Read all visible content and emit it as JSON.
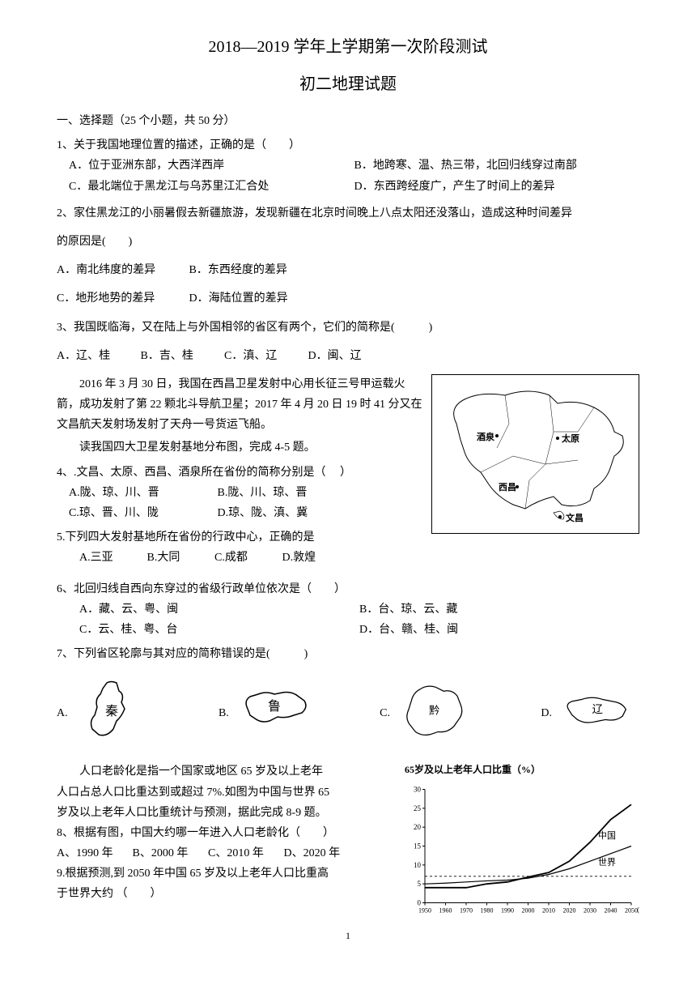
{
  "title": "2018—2019 学年上学期第一次阶段测试",
  "subtitle": "初二地理试题",
  "section1": "一、选择题（25 个小题，共 50 分）",
  "q1": {
    "text": "1、关于我国地理位置的描述，正确的是（　　）",
    "a": "A．位于亚洲东部，大西洋西岸",
    "b": "B．地跨寒、温、热三带，北回归线穿过南部",
    "c": "C．最北端位于黑龙江与乌苏里江汇合处",
    "d": "D．东西跨经度广，产生了时间上的差异"
  },
  "q2": {
    "text": "2、家住黑龙江的小丽暑假去新疆旅游，发现新疆在北京时间晚上八点太阳还没落山，造成这种时间差异",
    "text2": "的原因是(　　)",
    "a": "A．南北纬度的差异",
    "b": "B．东西经度的差异",
    "c": "C．地形地势的差异",
    "d": "D．海陆位置的差异"
  },
  "q3": {
    "text": "3、我国既临海，又在陆上与外国相邻的省区有两个，它们的简称是(　　　)",
    "a": "A．辽、桂",
    "b": "B．吉、桂",
    "c": "C．滇、辽",
    "d": "D．闽、辽"
  },
  "context1": "2016 年 3 月 30 日，我国在西昌卫星发射中心用长征三号甲运载火箭，成功发射了第 22 颗北斗导航卫星；2017 年 4 月 20 日 19 时 41 分又在文昌航天发射场发射了天舟一号货运飞船。",
  "context1b": "读我国四大卫星发射基地分布图，完成 4-5 题。",
  "q4": {
    "text": "4、.文昌、太原、西昌、酒泉所在省份的简称分别是（　 ）",
    "a": "A.陇、琼、川、晋",
    "b": "B.陇、川、琼、晋",
    "c": "C.琼、晋、川、陇",
    "d": "D.琼、陇、滇、冀"
  },
  "q5": {
    "text": "5.下列四大发射基地所在省份的行政中心，正确的是",
    "a": "A.三亚",
    "b": "B.大同",
    "c": "C.成都",
    "d": "D.敦煌"
  },
  "q6": {
    "text": "6、北回归线自西向东穿过的省级行政单位依次是（　　）",
    "a": "A．藏、云、粤、闽",
    "b": "B．台、琼、云、藏",
    "c": "C．云、桂、粤、台",
    "d": "D．台、赣、桂、闽"
  },
  "q7": {
    "text": "7、下列省区轮廓与其对应的简称错误的是(　　　)",
    "a": "A.",
    "b": "B.",
    "c": "C.",
    "d": "D.",
    "label_a": "秦",
    "label_b": "鲁",
    "label_c": "黔",
    "label_d": "辽"
  },
  "context2": {
    "l1": "人口老龄化是指一个国家或地区 65 岁及以上老年",
    "l2": "人口占总人口比重达到或超过 7%.如图为中国与世界 65",
    "l3": "岁及以上老年人口比重统计与预测，据此完成 8-9 题。"
  },
  "q8": {
    "text": "8、根据有图，中国大约哪一年进入人口老龄化（　　）",
    "a": "A、1990 年",
    "b": "B、2000 年",
    "c": "C、2010 年",
    "d": "D、2020 年"
  },
  "q9": {
    "text": "9.根据预测,到 2050 年中国 65 岁及以上老年人口比重高",
    "text2": "于世界大约 （　　）"
  },
  "map_labels": {
    "jiuquan": "酒泉",
    "taiyuan": "太原",
    "xichang": "西昌",
    "wenchang": "文昌"
  },
  "chart": {
    "title": "65岁及以上老年人口比重（%）",
    "y_max": 30,
    "y_ticks": [
      0,
      5,
      10,
      15,
      20,
      25,
      30
    ],
    "x_ticks": [
      "1950",
      "1960",
      "1970",
      "1980",
      "1990",
      "2000",
      "2010",
      "2020",
      "2030",
      "2040",
      "2050"
    ],
    "x_label_suffix": "（年）",
    "china_label": "中国",
    "world_label": "世界",
    "threshold": 7,
    "china_data": [
      4,
      4,
      4,
      5,
      5.5,
      6.8,
      8,
      11,
      16,
      22,
      26
    ],
    "world_data": [
      5,
      5.2,
      5.5,
      5.8,
      6,
      6.5,
      7.5,
      9,
      11,
      13,
      15
    ]
  },
  "page_number": "1"
}
